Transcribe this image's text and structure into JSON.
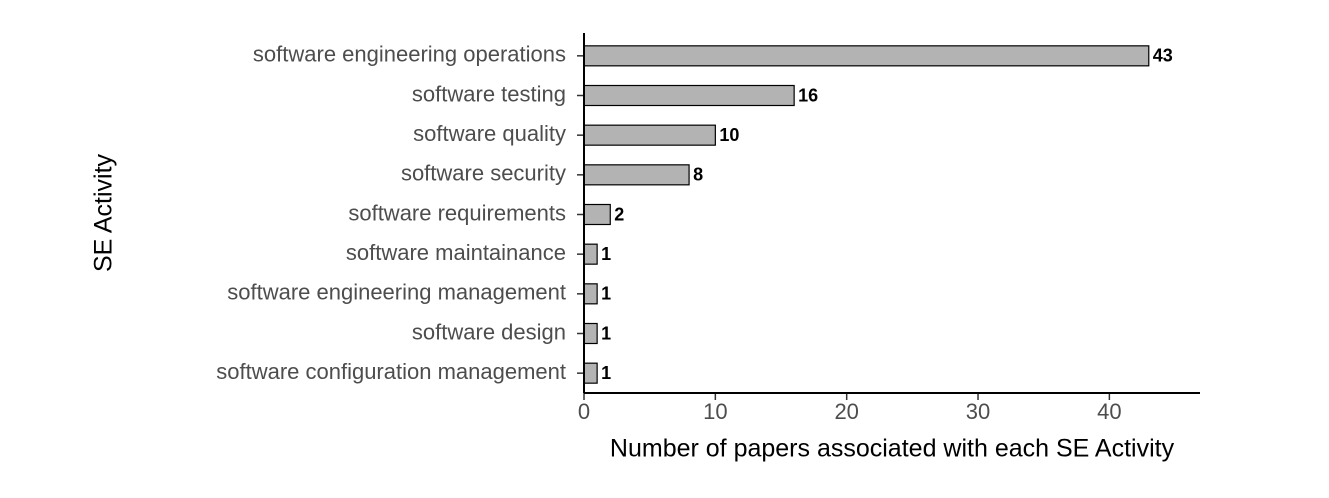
{
  "chart_data": {
    "type": "barh",
    "categories": [
      "software engineering operations",
      "software testing",
      "software quality",
      "software security",
      "software requirements",
      "software maintainance",
      "software engineering management",
      "software design",
      "software configuration management"
    ],
    "values": [
      43,
      16,
      10,
      8,
      2,
      1,
      1,
      1,
      1
    ],
    "color": "#b3b3b3",
    "xlim": [
      0,
      46.9
    ],
    "xticks": [
      0,
      10,
      20,
      30,
      40
    ],
    "x_label": "Number of papers associated with each SE Activity",
    "y_label": "SE Activity"
  }
}
